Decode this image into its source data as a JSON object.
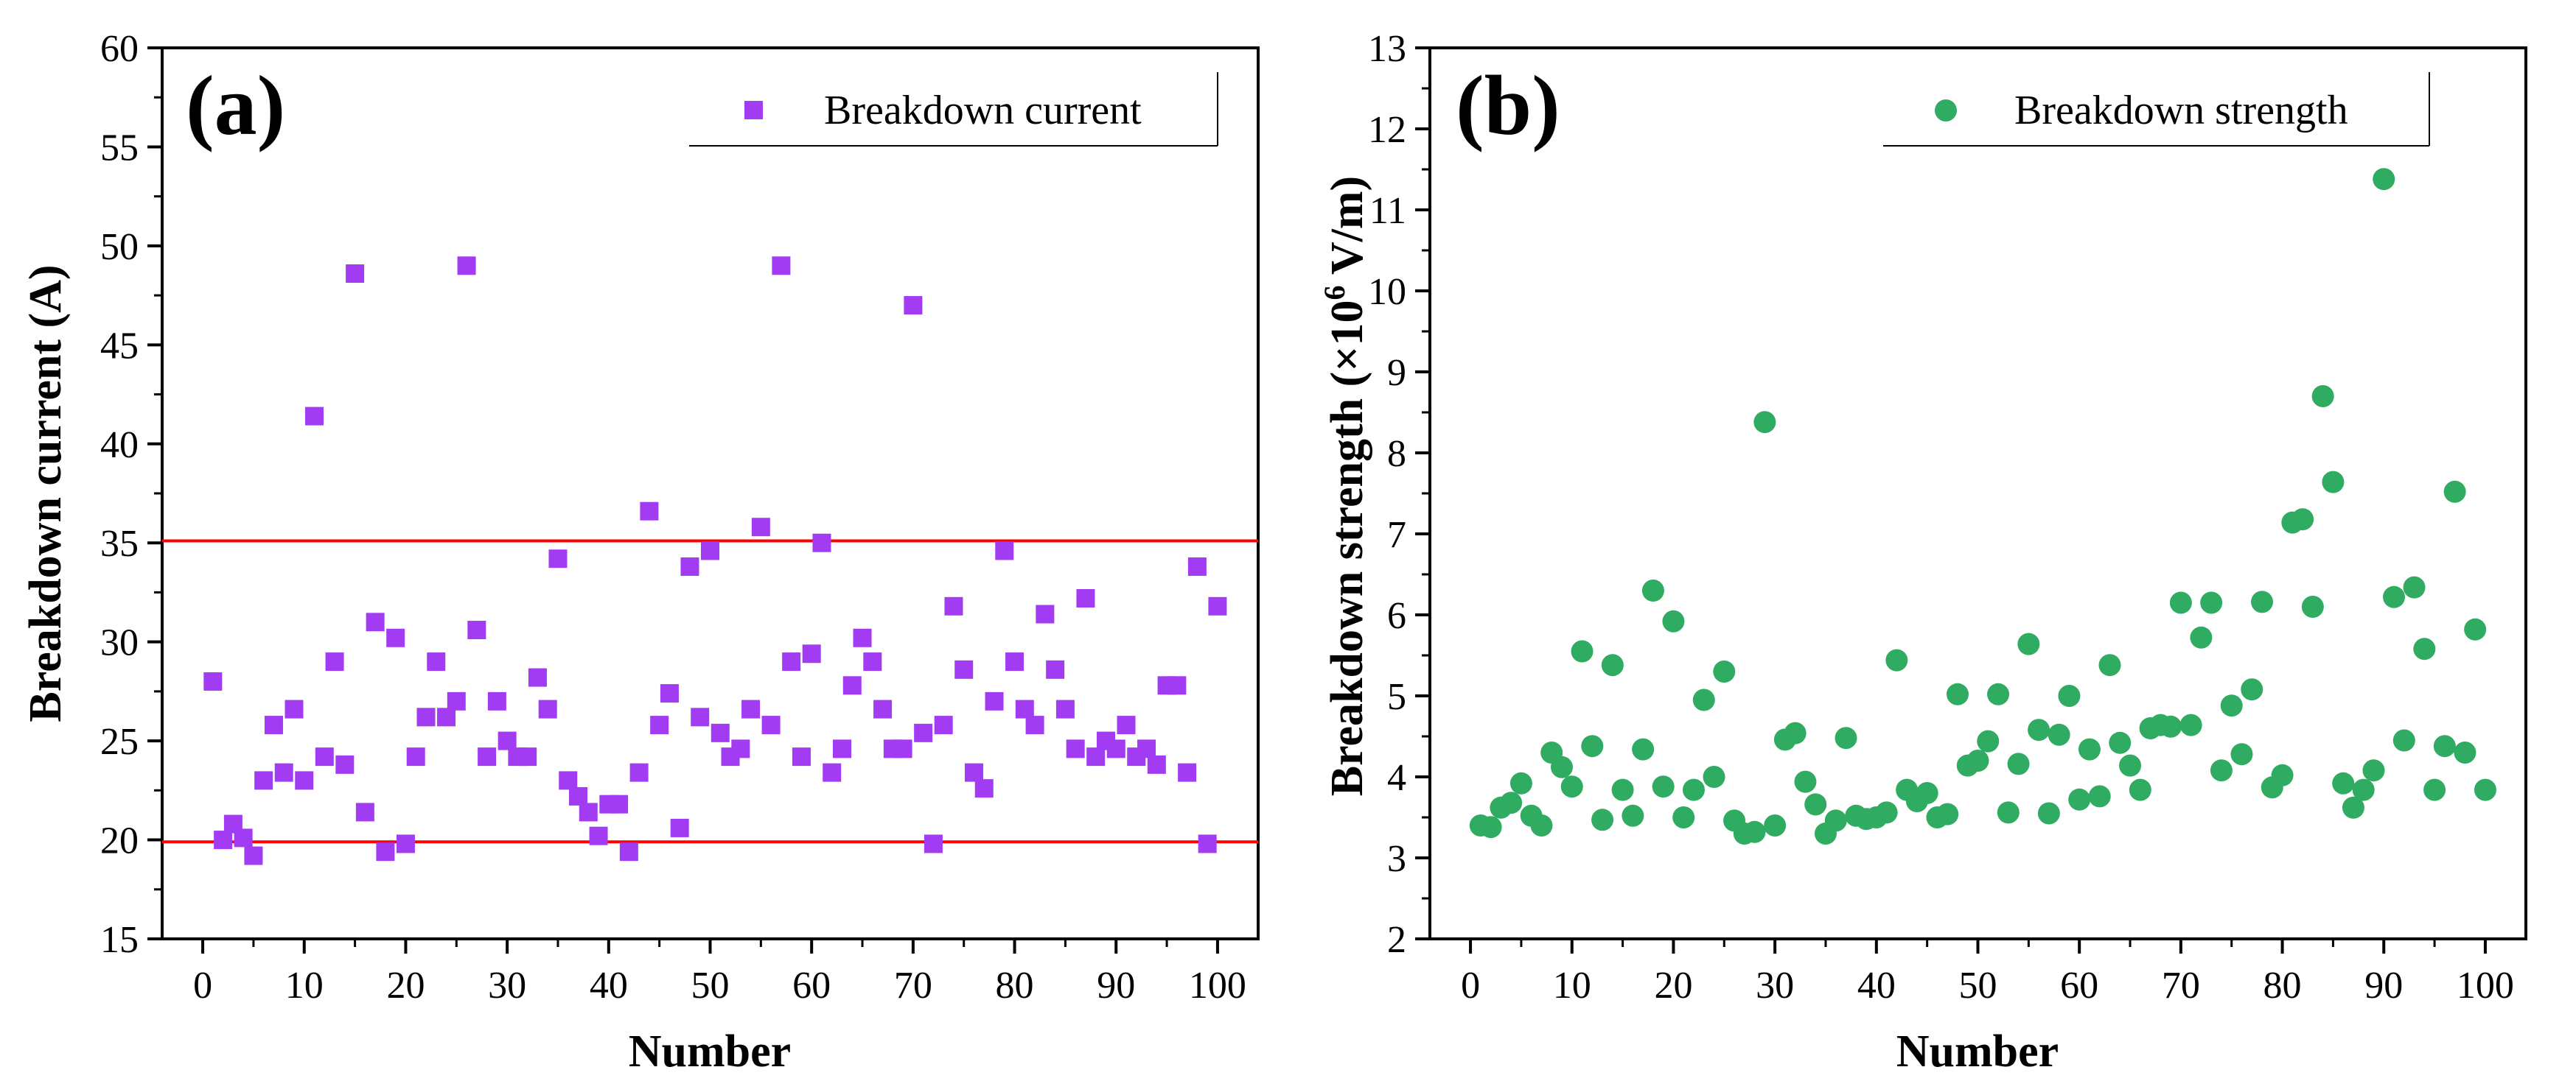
{
  "colors": {
    "panel_a_marker": "#a23cf2",
    "panel_b_marker": "#2fab62",
    "threshold_line": "#ff0000",
    "axis": "#000000"
  },
  "chart_data": [
    {
      "type": "scatter",
      "panel_label": "(a)",
      "xlabel": "Number",
      "ylabel": "Breakdown current (A)",
      "xlim": [
        -4,
        104
      ],
      "ylim": [
        15,
        60
      ],
      "xticks": [
        0,
        10,
        20,
        30,
        40,
        50,
        60,
        70,
        80,
        90,
        100
      ],
      "yticks": [
        15,
        20,
        25,
        30,
        35,
        40,
        45,
        50,
        55,
        60
      ],
      "legend": {
        "label": "Breakdown current",
        "placement": "top-right",
        "marker": "square"
      },
      "reference_lines": [
        35.1,
        19.9
      ],
      "series": [
        {
          "name": "Breakdown current",
          "marker": "square",
          "x": [
            1,
            2,
            3,
            4,
            5,
            6,
            7,
            8,
            9,
            10,
            11,
            12,
            13,
            14,
            15,
            16,
            17,
            18,
            19,
            20,
            21,
            22,
            23,
            24,
            25,
            26,
            27,
            28,
            29,
            30,
            31,
            32,
            33,
            34,
            35,
            36,
            37,
            38,
            39,
            40,
            41,
            42,
            43,
            44,
            45,
            46,
            47,
            48,
            49,
            50,
            51,
            52,
            53,
            54,
            55,
            56,
            57,
            58,
            59,
            60,
            61,
            62,
            63,
            64,
            65,
            66,
            67,
            68,
            69,
            70,
            71,
            72,
            73,
            74,
            75,
            76,
            77,
            78,
            79,
            80,
            81,
            82,
            83,
            84,
            85,
            86,
            87,
            88,
            89,
            90,
            91,
            92,
            93,
            94,
            95,
            96,
            97,
            98,
            99,
            100
          ],
          "y": [
            28.0,
            20.0,
            20.8,
            20.1,
            19.2,
            23.0,
            25.8,
            23.4,
            26.6,
            23.0,
            41.4,
            24.2,
            29.0,
            23.8,
            48.6,
            21.4,
            31.0,
            19.4,
            30.2,
            19.8,
            24.2,
            26.2,
            29.0,
            26.2,
            27.0,
            49.0,
            30.6,
            24.2,
            27.0,
            25.0,
            24.2,
            24.2,
            28.2,
            26.6,
            34.2,
            23.0,
            22.2,
            21.4,
            20.2,
            21.8,
            21.8,
            19.4,
            23.4,
            36.6,
            25.8,
            27.4,
            20.6,
            33.8,
            26.2,
            34.6,
            25.4,
            24.2,
            24.6,
            26.6,
            35.8,
            25.8,
            49.0,
            29.0,
            24.2,
            29.4,
            35.0,
            23.4,
            24.6,
            27.8,
            30.2,
            29.0,
            26.6,
            24.6,
            24.6,
            47.0,
            25.4,
            19.8,
            25.8,
            31.8,
            28.6,
            23.4,
            22.6,
            27.0,
            34.6,
            29.0,
            26.6,
            25.8,
            31.4,
            28.6,
            26.6,
            24.6,
            32.2,
            24.2,
            25.0,
            24.6,
            25.8,
            24.2,
            24.6,
            23.8,
            27.8,
            27.8,
            23.4,
            33.8,
            19.8,
            31.8
          ]
        }
      ]
    },
    {
      "type": "scatter",
      "panel_label": "(b)",
      "xlabel": "Number",
      "ylabel_main": "Breakdown strength (×10",
      "ylabel_sup": "6",
      "ylabel_unit": " V/m)",
      "xlim": [
        -4,
        104
      ],
      "ylim": [
        2,
        13
      ],
      "xticks": [
        0,
        10,
        20,
        30,
        40,
        50,
        60,
        70,
        80,
        90,
        100
      ],
      "yticks": [
        2,
        3,
        4,
        5,
        6,
        7,
        8,
        9,
        10,
        11,
        12,
        13
      ],
      "legend": {
        "label": "Breakdown strength",
        "placement": "top-right",
        "marker": "circle"
      },
      "series": [
        {
          "name": "Breakdown strength",
          "marker": "circle",
          "x": [
            1,
            2,
            3,
            4,
            5,
            6,
            7,
            8,
            9,
            10,
            11,
            12,
            13,
            14,
            15,
            16,
            17,
            18,
            19,
            20,
            21,
            22,
            23,
            24,
            25,
            26,
            27,
            28,
            29,
            30,
            31,
            32,
            33,
            34,
            35,
            36,
            37,
            38,
            39,
            40,
            41,
            42,
            43,
            44,
            45,
            46,
            47,
            48,
            49,
            50,
            51,
            52,
            53,
            54,
            55,
            56,
            57,
            58,
            59,
            60,
            61,
            62,
            63,
            64,
            65,
            66,
            67,
            68,
            69,
            70,
            71,
            72,
            73,
            74,
            75,
            76,
            77,
            78,
            79,
            80,
            81,
            82,
            83,
            84,
            85,
            86,
            87,
            88,
            89,
            90,
            91,
            92,
            93,
            94,
            95,
            96,
            97,
            98,
            99,
            100
          ],
          "y": [
            3.4,
            3.38,
            3.62,
            3.68,
            3.92,
            3.52,
            3.4,
            4.3,
            4.12,
            3.88,
            5.55,
            4.38,
            3.47,
            5.38,
            3.84,
            3.52,
            4.34,
            6.3,
            3.88,
            5.92,
            3.5,
            3.84,
            4.95,
            4.0,
            5.3,
            3.46,
            3.3,
            3.32,
            8.38,
            3.4,
            4.46,
            4.54,
            3.94,
            3.66,
            3.3,
            3.46,
            4.48,
            3.52,
            3.48,
            3.5,
            3.56,
            5.44,
            3.84,
            3.7,
            3.8,
            3.5,
            3.54,
            5.02,
            4.14,
            4.2,
            4.44,
            5.02,
            3.56,
            4.16,
            5.64,
            4.58,
            3.55,
            4.52,
            5.0,
            3.72,
            4.34,
            3.76,
            5.38,
            4.42,
            4.14,
            3.84,
            4.6,
            4.64,
            4.62,
            6.15,
            4.64,
            5.72,
            6.15,
            4.08,
            4.88,
            4.28,
            5.08,
            6.16,
            3.87,
            4.02,
            7.14,
            7.18,
            6.1,
            8.7,
            7.64,
            3.92,
            3.62,
            3.84,
            4.08,
            11.38,
            6.22,
            4.45,
            6.34,
            5.58,
            3.84,
            4.38,
            7.52,
            4.3,
            5.82,
            3.84
          ]
        }
      ]
    }
  ]
}
